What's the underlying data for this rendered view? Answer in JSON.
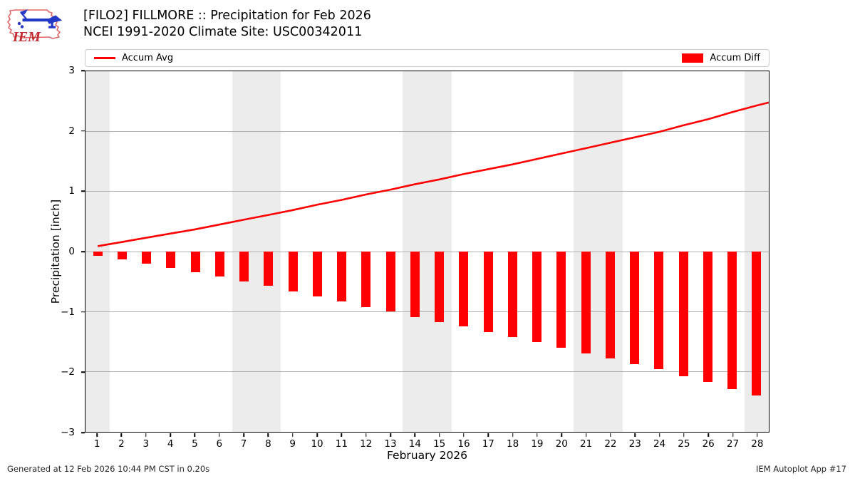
{
  "header": {
    "title_line1": "[FILO2] FILLMORE :: Precipitation for Feb 2026",
    "title_line2": "NCEI 1991-2020 Climate Site: USC00342011",
    "logo_text": "IEM"
  },
  "legend": {
    "avg_label": "Accum Avg",
    "diff_label": "Accum Diff"
  },
  "footer": {
    "generated": "Generated at 12 Feb 2026 10:44 PM CST in 0.20s",
    "app": "IEM Autoplot App #17"
  },
  "colors": {
    "line_red": "#ff0000",
    "bar_red": "#ff0000",
    "weekend_band": "#ececec",
    "gridline": "#b0b0b0",
    "axis": "#000000",
    "logo_outline": "#e06666",
    "logo_blue": "#2438c8",
    "logo_text_red": "#c22b33"
  },
  "chart_data": {
    "type": "bar",
    "title": "[FILO2] FILLMORE :: Precipitation for Feb 2026 — NCEI 1991-2020 Climate Site: USC00342011",
    "xlabel": "February 2026",
    "ylabel": "Precipitation [inch]",
    "xlim": [
      0.5,
      28.5
    ],
    "ylim": [
      -3,
      3
    ],
    "yticks": [
      3,
      2,
      1,
      0,
      -1,
      -2,
      -3
    ],
    "grid": true,
    "legend_position": "top",
    "x": [
      1,
      2,
      3,
      4,
      5,
      6,
      7,
      8,
      9,
      10,
      11,
      12,
      13,
      14,
      15,
      16,
      17,
      18,
      19,
      20,
      21,
      22,
      23,
      24,
      25,
      26,
      27,
      28
    ],
    "series": [
      {
        "name": "Accum Avg",
        "type": "line",
        "values": [
          0.09,
          0.16,
          0.23,
          0.3,
          0.37,
          0.45,
          0.53,
          0.61,
          0.69,
          0.78,
          0.86,
          0.95,
          1.03,
          1.12,
          1.2,
          1.29,
          1.37,
          1.45,
          1.54,
          1.63,
          1.72,
          1.81,
          1.9,
          1.99,
          2.1,
          2.2,
          2.32,
          2.43
        ]
      },
      {
        "name": "Accum Diff",
        "type": "bar",
        "values": [
          -0.07,
          -0.13,
          -0.2,
          -0.27,
          -0.34,
          -0.42,
          -0.5,
          -0.57,
          -0.66,
          -0.75,
          -0.83,
          -0.92,
          -1.0,
          -1.09,
          -1.17,
          -1.25,
          -1.34,
          -1.42,
          -1.5,
          -1.6,
          -1.69,
          -1.78,
          -1.87,
          -1.96,
          -2.07,
          -2.17,
          -2.29,
          -2.4
        ]
      }
    ],
    "line_end_extension": {
      "x": 28.5,
      "value": 2.48
    },
    "weekend_bands": [
      [
        0.5,
        1.5
      ],
      [
        6.5,
        8.5
      ],
      [
        13.5,
        15.5
      ],
      [
        20.5,
        22.5
      ],
      [
        27.5,
        28.5
      ]
    ]
  }
}
